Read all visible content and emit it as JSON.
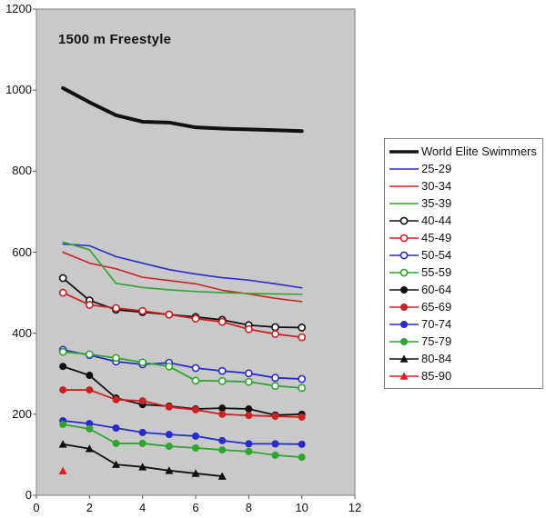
{
  "chart_data": {
    "type": "line",
    "title": "1500 m Freestyle",
    "xlabel": "",
    "ylabel": "",
    "xlim": [
      0,
      12
    ],
    "ylim": [
      0,
      1200
    ],
    "x_ticks": [
      0,
      2,
      4,
      6,
      8,
      10,
      12
    ],
    "y_ticks": [
      0,
      200,
      400,
      600,
      800,
      1000,
      1200
    ],
    "grid": false,
    "legend_position": "right",
    "plot_bg_color": "#C9C9C9",
    "plot_border_color": "#7F7F7F",
    "tick_color": "#555555",
    "x": [
      1,
      2,
      3,
      4,
      5,
      6,
      7,
      8,
      9,
      10
    ],
    "series": [
      {
        "name": "World Elite Swimmers",
        "color": "#111111",
        "marker": "none",
        "line_width": 4,
        "values": [
          1005,
          970,
          938,
          922,
          920,
          908,
          905,
          903,
          901,
          899
        ]
      },
      {
        "name": "25-29",
        "color": "#2A2ACD",
        "marker": "none",
        "line_width": 1.6,
        "values": [
          620,
          616,
          589,
          573,
          557,
          546,
          537,
          531,
          522,
          512
        ]
      },
      {
        "name": "30-34",
        "color": "#CC2222",
        "marker": "none",
        "line_width": 1.6,
        "values": [
          600,
          573,
          559,
          538,
          530,
          522,
          506,
          497,
          486,
          478
        ]
      },
      {
        "name": "35-39",
        "color": "#2FA42F",
        "marker": "none",
        "line_width": 1.6,
        "values": [
          625,
          606,
          523,
          513,
          507,
          503,
          500,
          498,
          497,
          496
        ]
      },
      {
        "name": "40-44",
        "color": "#111111",
        "marker": "circle-open",
        "line_width": 1.8,
        "values": [
          536,
          481,
          458,
          452,
          446,
          440,
          433,
          420,
          415,
          414
        ]
      },
      {
        "name": "45-49",
        "color": "#CC2222",
        "marker": "circle-open",
        "line_width": 1.8,
        "values": [
          500,
          470,
          462,
          455,
          446,
          436,
          428,
          410,
          398,
          390
        ]
      },
      {
        "name": "50-54",
        "color": "#2A2ACD",
        "marker": "circle-open",
        "line_width": 1.8,
        "values": [
          359,
          346,
          330,
          323,
          327,
          314,
          307,
          301,
          290,
          287
        ]
      },
      {
        "name": "55-59",
        "color": "#2FA42F",
        "marker": "circle-open",
        "line_width": 1.8,
        "values": [
          354,
          348,
          339,
          328,
          318,
          283,
          282,
          280,
          270,
          265
        ]
      },
      {
        "name": "60-64",
        "color": "#111111",
        "marker": "circle",
        "line_width": 1.8,
        "values": [
          318,
          296,
          240,
          224,
          220,
          213,
          215,
          213,
          198,
          200
        ]
      },
      {
        "name": "65-69",
        "color": "#CC2222",
        "marker": "circle",
        "line_width": 1.8,
        "values": [
          260,
          260,
          236,
          233,
          218,
          211,
          200,
          197,
          195,
          193
        ]
      },
      {
        "name": "70-74",
        "color": "#2A2ACD",
        "marker": "circle",
        "line_width": 1.8,
        "values": [
          184,
          177,
          166,
          155,
          150,
          146,
          135,
          127,
          127,
          126
        ]
      },
      {
        "name": "75-79",
        "color": "#2FA42F",
        "marker": "circle",
        "line_width": 1.8,
        "values": [
          175,
          164,
          128,
          128,
          121,
          117,
          112,
          108,
          99,
          94
        ]
      },
      {
        "name": "80-84",
        "color": "#111111",
        "marker": "triangle",
        "line_width": 1.8,
        "values": [
          126,
          115,
          76,
          70,
          61,
          54,
          47
        ]
      },
      {
        "name": "85-90",
        "color": "#D22222",
        "marker": "triangle",
        "line_width": 1.8,
        "values": [
          60
        ]
      }
    ]
  }
}
